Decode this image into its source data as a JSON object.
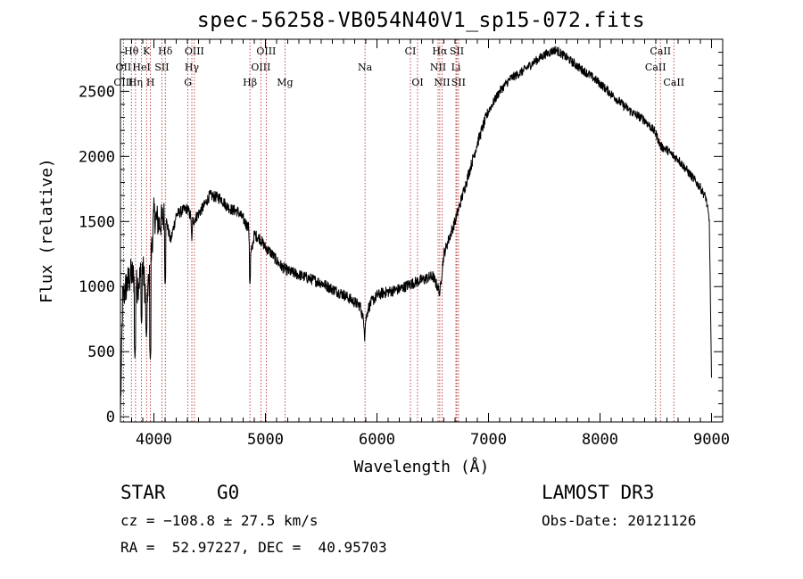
{
  "chart_data": {
    "type": "line",
    "title": "spec-56258-VB054N40V1_sp15-072.fits",
    "xlabel": "Wavelength (Å)",
    "ylabel": "Flux (relative)",
    "xlim": [
      3700,
      9100
    ],
    "ylim": [
      -40,
      2900
    ],
    "xticks": [
      4000,
      5000,
      6000,
      7000,
      8000,
      9000
    ],
    "xtick_labels": [
      "4000",
      "5000",
      "6000",
      "7000",
      "8000",
      "9000"
    ],
    "yticks": [
      0,
      500,
      1000,
      1500,
      2000,
      2500
    ],
    "ytick_labels": [
      "0",
      "500",
      "1000",
      "1500",
      "2000",
      "2500"
    ],
    "spectrum_anchors": {
      "x": [
        3700,
        3720,
        3750,
        3800,
        3850,
        3900,
        3930,
        3960,
        4000,
        4050,
        4100,
        4150,
        4200,
        4250,
        4300,
        4350,
        4400,
        4450,
        4500,
        4550,
        4600,
        4650,
        4700,
        4750,
        4800,
        4850,
        4861,
        4900,
        4950,
        5000,
        5050,
        5100,
        5150,
        5200,
        5300,
        5400,
        5500,
        5600,
        5700,
        5800,
        5850,
        5890,
        5920,
        5950,
        6000,
        6050,
        6100,
        6200,
        6300,
        6400,
        6500,
        6563,
        6600,
        6650,
        6700,
        6750,
        6800,
        6850,
        6900,
        6950,
        7000,
        7100,
        7200,
        7300,
        7400,
        7500,
        7600,
        7700,
        7800,
        7900,
        8000,
        8100,
        8200,
        8300,
        8400,
        8500,
        8542,
        8600,
        8662,
        8700,
        8800,
        8900,
        8950,
        8980,
        9000
      ],
      "y": [
        0,
        900,
        1000,
        1100,
        1000,
        1150,
        900,
        1050,
        1550,
        1480,
        1550,
        1350,
        1550,
        1580,
        1600,
        1500,
        1560,
        1620,
        1700,
        1690,
        1680,
        1620,
        1590,
        1580,
        1520,
        1450,
        1200,
        1400,
        1370,
        1300,
        1260,
        1200,
        1150,
        1120,
        1090,
        1060,
        1030,
        980,
        940,
        880,
        850,
        700,
        830,
        880,
        930,
        950,
        960,
        980,
        1020,
        1050,
        1080,
        960,
        1250,
        1380,
        1500,
        1650,
        1800,
        1950,
        2100,
        2230,
        2350,
        2500,
        2600,
        2650,
        2720,
        2780,
        2820,
        2760,
        2690,
        2630,
        2560,
        2480,
        2400,
        2330,
        2280,
        2180,
        2080,
        2050,
        2000,
        1980,
        1870,
        1760,
        1680,
        1500,
        300
      ],
      "noise_amplitude": 45,
      "strong_dips": [
        {
          "x": 3830,
          "y": 450
        },
        {
          "x": 3889,
          "y": 700
        },
        {
          "x": 3933,
          "y": 600
        },
        {
          "x": 3968,
          "y": 430
        },
        {
          "x": 4101,
          "y": 1000
        },
        {
          "x": 4340,
          "y": 1350
        },
        {
          "x": 4861,
          "y": 1000
        },
        {
          "x": 5890,
          "y": 580
        },
        {
          "x": 6563,
          "y": 920
        }
      ]
    },
    "line_markers": [
      {
        "label": "Hθ",
        "x": 3798,
        "row": 0
      },
      {
        "label": "K",
        "x": 3934,
        "row": 0
      },
      {
        "label": "Hδ",
        "x": 4102,
        "row": 0
      },
      {
        "label": "OIII",
        "x": 4363,
        "row": 0
      },
      {
        "label": "OIII",
        "x": 5007,
        "row": 0
      },
      {
        "label": "CI",
        "x": 6300,
        "row": 0
      },
      {
        "label": "Hα",
        "x": 6563,
        "row": 0
      },
      {
        "label": "SII",
        "x": 6716,
        "row": 0
      },
      {
        "label": "CaII",
        "x": 8542,
        "row": 0
      },
      {
        "label": "OII",
        "x": 3727,
        "row": 1
      },
      {
        "label": "HeI",
        "x": 3889,
        "row": 1
      },
      {
        "label": "SII",
        "x": 4072,
        "row": 1
      },
      {
        "label": "Hγ",
        "x": 4340,
        "row": 1
      },
      {
        "label": "OIII",
        "x": 4959,
        "row": 1
      },
      {
        "label": "Na",
        "x": 5893,
        "row": 1
      },
      {
        "label": "NII",
        "x": 6548,
        "row": 1
      },
      {
        "label": "Li",
        "x": 6708,
        "row": 1
      },
      {
        "label": "CaII",
        "x": 8498,
        "row": 1
      },
      {
        "label": "OIII",
        "x": 3727,
        "row": 2
      },
      {
        "label": "Hη",
        "x": 3835,
        "row": 2
      },
      {
        "label": "H",
        "x": 3969,
        "row": 2
      },
      {
        "label": "G",
        "x": 4305,
        "row": 2
      },
      {
        "label": "Hβ",
        "x": 4861,
        "row": 2
      },
      {
        "label": "Mg",
        "x": 5175,
        "row": 2
      },
      {
        "label": "OI",
        "x": 6364,
        "row": 2
      },
      {
        "label": "NII",
        "x": 6584,
        "row": 2
      },
      {
        "label": "SII",
        "x": 6731,
        "row": 2
      },
      {
        "label": "CaII",
        "x": 8662,
        "row": 2
      }
    ],
    "marker_color": "#b22222"
  },
  "info": {
    "class": "STAR",
    "subclass": "G0",
    "survey": "LAMOST DR3",
    "cz": "cz = −108.8 ± 27.5 km/s",
    "obs_date": "Obs-Date: 20121126",
    "coords": "RA =  52.97227, DEC =  40.95703"
  }
}
